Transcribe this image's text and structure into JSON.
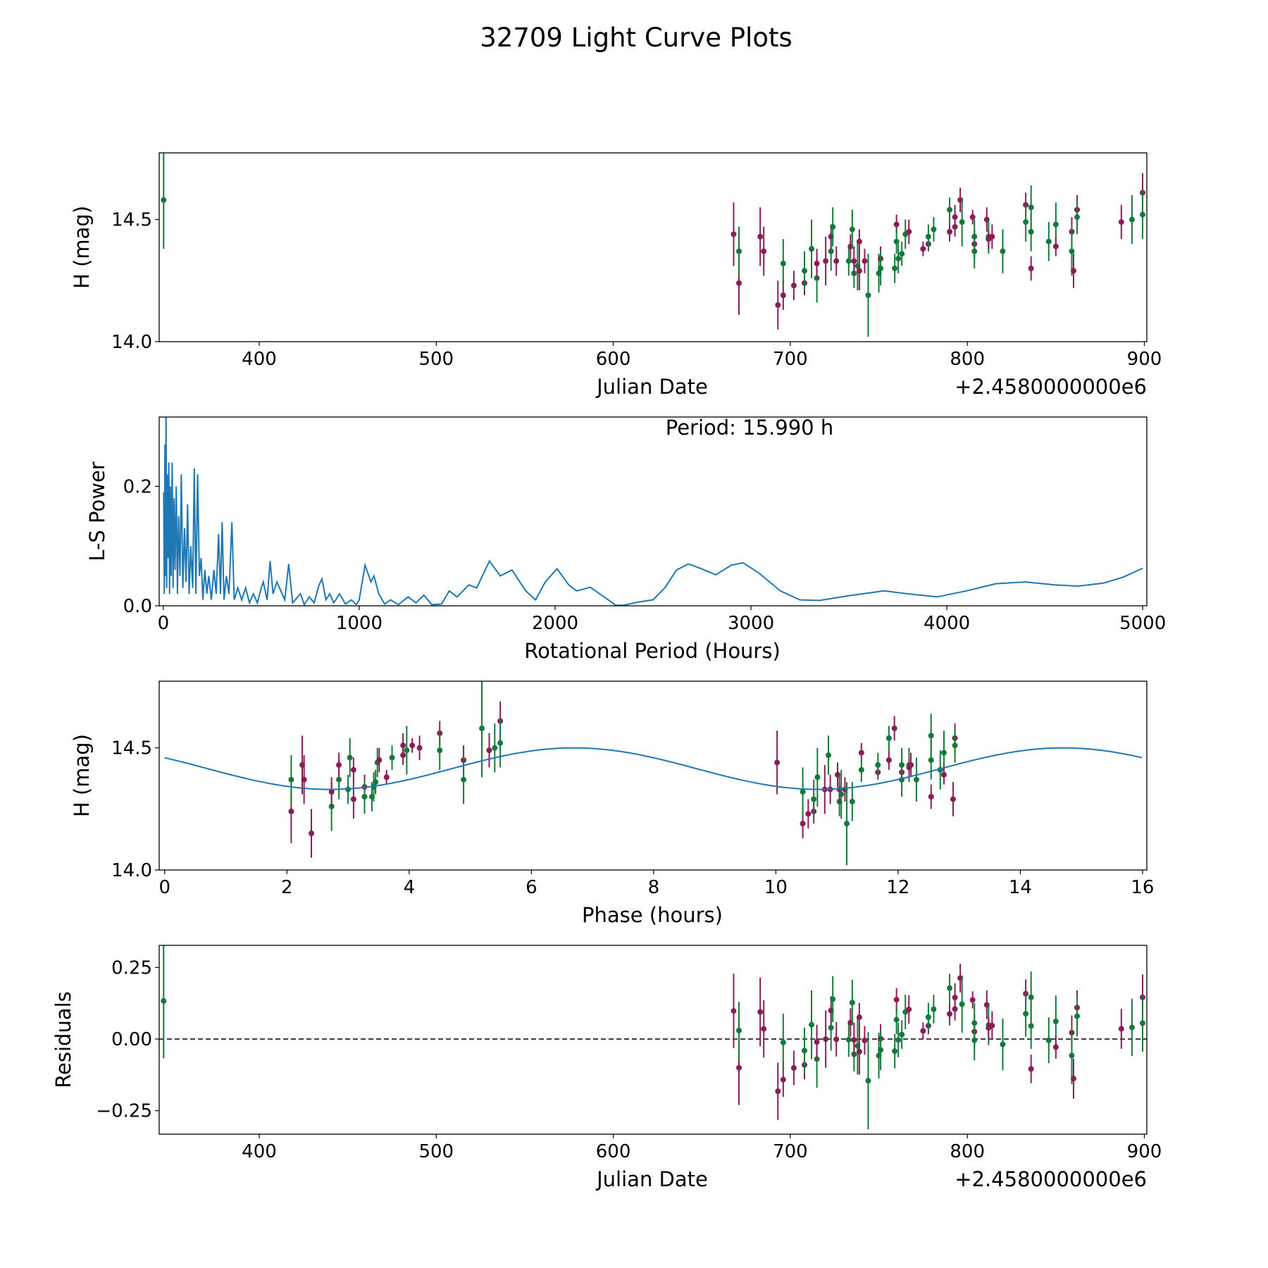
{
  "title": "32709 Light Curve Plots",
  "colors": {
    "filter_g": "#137a3a",
    "filter_m": "#8a1d55",
    "line": "#1f77b4",
    "axis": "#000000"
  },
  "chart_data": [
    {
      "type": "scatter",
      "name": "light-curve",
      "xlabel": "Julian Date",
      "ylabel": "H (mag)",
      "offset_text": "+2.4580000000e6",
      "xlim": [
        343.5,
        901.4
      ],
      "ylim": [
        14.0,
        14.773
      ],
      "xticks": [
        400,
        500,
        600,
        700,
        800,
        900
      ],
      "xtick_labels": [
        "400",
        "500",
        "600",
        "700",
        "800",
        "900"
      ],
      "yticks": [
        14.0,
        14.5
      ],
      "ytick_labels": [
        "14.0",
        "14.5"
      ]
    },
    {
      "type": "line",
      "name": "periodogram",
      "xlabel": "Rotational Period (Hours)",
      "ylabel": "L-S Power",
      "annotation": "Period: 15.990 h",
      "xlim": [
        -21,
        5021
      ],
      "ylim": [
        0,
        0.316
      ],
      "xticks": [
        0,
        1000,
        2000,
        3000,
        4000,
        5000
      ],
      "xtick_labels": [
        "0",
        "1000",
        "2000",
        "3000",
        "4000",
        "5000"
      ],
      "yticks": [
        0,
        0.2
      ],
      "ytick_labels": [
        "0.0",
        "0.2"
      ],
      "points": [
        [
          2,
          0.19
        ],
        [
          5,
          0.02
        ],
        [
          8,
          0.27
        ],
        [
          11,
          0.05
        ],
        [
          14,
          0.32
        ],
        [
          17,
          0.03
        ],
        [
          20,
          0.22
        ],
        [
          24,
          0.08
        ],
        [
          28,
          0.24
        ],
        [
          32,
          0.02
        ],
        [
          36,
          0.2
        ],
        [
          40,
          0.05
        ],
        [
          45,
          0.24
        ],
        [
          50,
          0.03
        ],
        [
          55,
          0.18
        ],
        [
          60,
          0.06
        ],
        [
          66,
          0.2
        ],
        [
          72,
          0.02
        ],
        [
          78,
          0.15
        ],
        [
          85,
          0.05
        ],
        [
          92,
          0.22
        ],
        [
          100,
          0.03
        ],
        [
          108,
          0.13
        ],
        [
          116,
          0.04
        ],
        [
          124,
          0.17
        ],
        [
          132,
          0.02
        ],
        [
          140,
          0.1
        ],
        [
          150,
          0.03
        ],
        [
          158,
          0.23
        ],
        [
          166,
          0.02
        ],
        [
          175,
          0.22
        ],
        [
          184,
          0.05
        ],
        [
          193,
          0.08
        ],
        [
          202,
          0.01
        ],
        [
          212,
          0.06
        ],
        [
          222,
          0.02
        ],
        [
          232,
          0.05
        ],
        [
          245,
          0.01
        ],
        [
          258,
          0.06
        ],
        [
          270,
          0.02
        ],
        [
          282,
          0.12
        ],
        [
          292,
          0.02
        ],
        [
          300,
          0.14
        ],
        [
          310,
          0.01
        ],
        [
          322,
          0.05
        ],
        [
          335,
          0.02
        ],
        [
          350,
          0.14
        ],
        [
          362,
          0.01
        ],
        [
          380,
          0.03
        ],
        [
          400,
          0.01
        ],
        [
          420,
          0.03
        ],
        [
          440,
          0.005
        ],
        [
          460,
          0.02
        ],
        [
          480,
          0.005
        ],
        [
          500,
          0.03
        ],
        [
          510,
          0.04
        ],
        [
          530,
          0.01
        ],
        [
          545,
          0.075
        ],
        [
          560,
          0.02
        ],
        [
          580,
          0.04
        ],
        [
          600,
          0.025
        ],
        [
          620,
          0.01
        ],
        [
          640,
          0.07
        ],
        [
          660,
          0.005
        ],
        [
          700,
          0.02
        ],
        [
          720,
          0.002
        ],
        [
          745,
          0.015
        ],
        [
          770,
          0.005
        ],
        [
          795,
          0.035
        ],
        [
          810,
          0.045
        ],
        [
          830,
          0.01
        ],
        [
          850,
          0.02
        ],
        [
          870,
          0.005
        ],
        [
          900,
          0.02
        ],
        [
          930,
          0.003
        ],
        [
          960,
          0.01
        ],
        [
          985,
          0.002
        ],
        [
          1000,
          0.01
        ],
        [
          1030,
          0.068
        ],
        [
          1060,
          0.04
        ],
        [
          1075,
          0.05
        ],
        [
          1100,
          0.02
        ],
        [
          1130,
          0.003
        ],
        [
          1160,
          0.01
        ],
        [
          1200,
          0.002
        ],
        [
          1250,
          0.015
        ],
        [
          1290,
          0.005
        ],
        [
          1330,
          0.018
        ],
        [
          1370,
          0.002
        ],
        [
          1420,
          0.003
        ],
        [
          1460,
          0.025
        ],
        [
          1500,
          0.015
        ],
        [
          1560,
          0.035
        ],
        [
          1600,
          0.03
        ],
        [
          1665,
          0.075
        ],
        [
          1720,
          0.05
        ],
        [
          1780,
          0.06
        ],
        [
          1850,
          0.025
        ],
        [
          1900,
          0.01
        ],
        [
          1950,
          0.04
        ],
        [
          2010,
          0.062
        ],
        [
          2070,
          0.035
        ],
        [
          2110,
          0.025
        ],
        [
          2180,
          0.031
        ],
        [
          2250,
          0.015
        ],
        [
          2310,
          0.001
        ],
        [
          2350,
          0.001
        ],
        [
          2420,
          0.006
        ],
        [
          2500,
          0.01
        ],
        [
          2560,
          0.03
        ],
        [
          2620,
          0.06
        ],
        [
          2680,
          0.07
        ],
        [
          2740,
          0.063
        ],
        [
          2820,
          0.052
        ],
        [
          2900,
          0.068
        ],
        [
          2960,
          0.072
        ],
        [
          3040,
          0.055
        ],
        [
          3150,
          0.025
        ],
        [
          3250,
          0.01
        ],
        [
          3350,
          0.009
        ],
        [
          3500,
          0.017
        ],
        [
          3680,
          0.025
        ],
        [
          3800,
          0.02
        ],
        [
          3950,
          0.015
        ],
        [
          4100,
          0.025
        ],
        [
          4250,
          0.037
        ],
        [
          4400,
          0.04
        ],
        [
          4550,
          0.035
        ],
        [
          4670,
          0.033
        ],
        [
          4800,
          0.038
        ],
        [
          4900,
          0.048
        ],
        [
          5000,
          0.063
        ]
      ]
    },
    {
      "type": "scatter",
      "name": "phased-curve",
      "xlabel": "Phase (hours)",
      "ylabel": "H (mag)",
      "xlim": [
        -0.09,
        16.07
      ],
      "ylim": [
        14.0,
        14.773
      ],
      "xticks": [
        0,
        2,
        4,
        6,
        8,
        10,
        12,
        14,
        16
      ],
      "xtick_labels": [
        "0",
        "2",
        "4",
        "6",
        "8",
        "10",
        "12",
        "14",
        "16"
      ],
      "yticks": [
        14.0,
        14.5
      ],
      "ytick_labels": [
        "14.0",
        "14.5"
      ],
      "period_hours": 15.99,
      "model": {
        "mean": 14.415,
        "amplitude": 0.085,
        "peak_phase": 6.7,
        "half_period": 8.0
      }
    },
    {
      "type": "scatter",
      "name": "residuals",
      "xlabel": "Julian Date",
      "ylabel": "Residuals",
      "offset_text": "+2.4580000000e6",
      "xlim": [
        343.5,
        901.4
      ],
      "ylim": [
        -0.332,
        0.327
      ],
      "xticks": [
        400,
        500,
        600,
        700,
        800,
        900
      ],
      "xtick_labels": [
        "400",
        "500",
        "600",
        "700",
        "800",
        "900"
      ],
      "yticks": [
        -0.25,
        0,
        0.25
      ],
      "ytick_labels": [
        "−0.25",
        "0.00",
        "0.25"
      ]
    }
  ],
  "observations": [
    [
      346,
      14.58,
      0.2,
      "g"
    ],
    [
      668,
      14.44,
      0.13,
      "m"
    ],
    [
      671,
      14.24,
      0.13,
      "m"
    ],
    [
      671,
      14.37,
      0.1,
      "g"
    ],
    [
      683,
      14.43,
      0.12,
      "m"
    ],
    [
      685,
      14.37,
      0.1,
      "m"
    ],
    [
      693,
      14.15,
      0.1,
      "m"
    ],
    [
      696,
      14.19,
      0.06,
      "m"
    ],
    [
      696,
      14.32,
      0.1,
      "g"
    ],
    [
      702,
      14.23,
      0.06,
      "m"
    ],
    [
      708,
      14.24,
      0.05,
      "m"
    ],
    [
      708,
      14.29,
      0.08,
      "g"
    ],
    [
      712,
      14.38,
      0.12,
      "g"
    ],
    [
      715,
      14.26,
      0.1,
      "g"
    ],
    [
      715,
      14.32,
      0.06,
      "m"
    ],
    [
      720,
      14.33,
      0.1,
      "m"
    ],
    [
      723,
      14.37,
      0.08,
      "g"
    ],
    [
      723,
      14.43,
      0.05,
      "m"
    ],
    [
      724,
      14.47,
      0.08,
      "g"
    ],
    [
      726,
      14.33,
      0.06,
      "m"
    ],
    [
      733,
      14.33,
      0.06,
      "g"
    ],
    [
      734,
      14.39,
      0.05,
      "m"
    ],
    [
      735,
      14.46,
      0.08,
      "g"
    ],
    [
      736,
      14.28,
      0.06,
      "g"
    ],
    [
      736,
      14.33,
      0.06,
      "m"
    ],
    [
      738,
      14.31,
      0.1,
      "g"
    ],
    [
      739,
      14.29,
      0.08,
      "m"
    ],
    [
      739,
      14.41,
      0.05,
      "m"
    ],
    [
      742,
      14.33,
      0.05,
      "m"
    ],
    [
      744,
      14.19,
      0.17,
      "g"
    ],
    [
      750,
      14.28,
      0.08,
      "g"
    ],
    [
      751,
      14.34,
      0.05,
      "m"
    ],
    [
      751,
      14.3,
      0.07,
      "g"
    ],
    [
      759,
      14.3,
      0.06,
      "g"
    ],
    [
      760,
      14.48,
      0.04,
      "m"
    ],
    [
      760,
      14.41,
      0.05,
      "g"
    ],
    [
      761,
      14.34,
      0.06,
      "g"
    ],
    [
      763,
      14.36,
      0.05,
      "g"
    ],
    [
      765,
      14.44,
      0.06,
      "g"
    ],
    [
      767,
      14.45,
      0.05,
      "m"
    ],
    [
      775,
      14.38,
      0.03,
      "m"
    ],
    [
      778,
      14.4,
      0.03,
      "m"
    ],
    [
      778,
      14.43,
      0.05,
      "g"
    ],
    [
      781,
      14.46,
      0.05,
      "g"
    ],
    [
      790,
      14.45,
      0.04,
      "m"
    ],
    [
      790,
      14.54,
      0.05,
      "g"
    ],
    [
      793,
      14.47,
      0.04,
      "m"
    ],
    [
      793,
      14.51,
      0.05,
      "m"
    ],
    [
      796,
      14.58,
      0.05,
      "m"
    ],
    [
      797,
      14.49,
      0.1,
      "g"
    ],
    [
      803,
      14.51,
      0.03,
      "m"
    ],
    [
      804,
      14.4,
      0.06,
      "m"
    ],
    [
      804,
      14.43,
      0.07,
      "g"
    ],
    [
      804,
      14.37,
      0.07,
      "g"
    ],
    [
      811,
      14.5,
      0.05,
      "m"
    ],
    [
      812,
      14.43,
      0.07,
      "g"
    ],
    [
      812,
      14.42,
      0.04,
      "m"
    ],
    [
      814,
      14.43,
      0.05,
      "m"
    ],
    [
      820,
      14.37,
      0.09,
      "g"
    ],
    [
      833,
      14.56,
      0.05,
      "m"
    ],
    [
      833,
      14.49,
      0.08,
      "g"
    ],
    [
      836,
      14.55,
      0.09,
      "g"
    ],
    [
      836,
      14.45,
      0.08,
      "g"
    ],
    [
      836,
      14.3,
      0.05,
      "m"
    ],
    [
      846,
      14.41,
      0.08,
      "g"
    ],
    [
      850,
      14.48,
      0.09,
      "g"
    ],
    [
      850,
      14.39,
      0.04,
      "m"
    ],
    [
      859,
      14.45,
      0.06,
      "m"
    ],
    [
      859,
      14.37,
      0.1,
      "g"
    ],
    [
      860,
      14.29,
      0.07,
      "m"
    ],
    [
      862,
      14.54,
      0.06,
      "m"
    ],
    [
      862,
      14.51,
      0.07,
      "g"
    ],
    [
      887,
      14.49,
      0.07,
      "m"
    ],
    [
      893,
      14.5,
      0.1,
      "g"
    ],
    [
      899,
      14.61,
      0.08,
      "m"
    ],
    [
      899,
      14.52,
      0.1,
      "g"
    ]
  ]
}
